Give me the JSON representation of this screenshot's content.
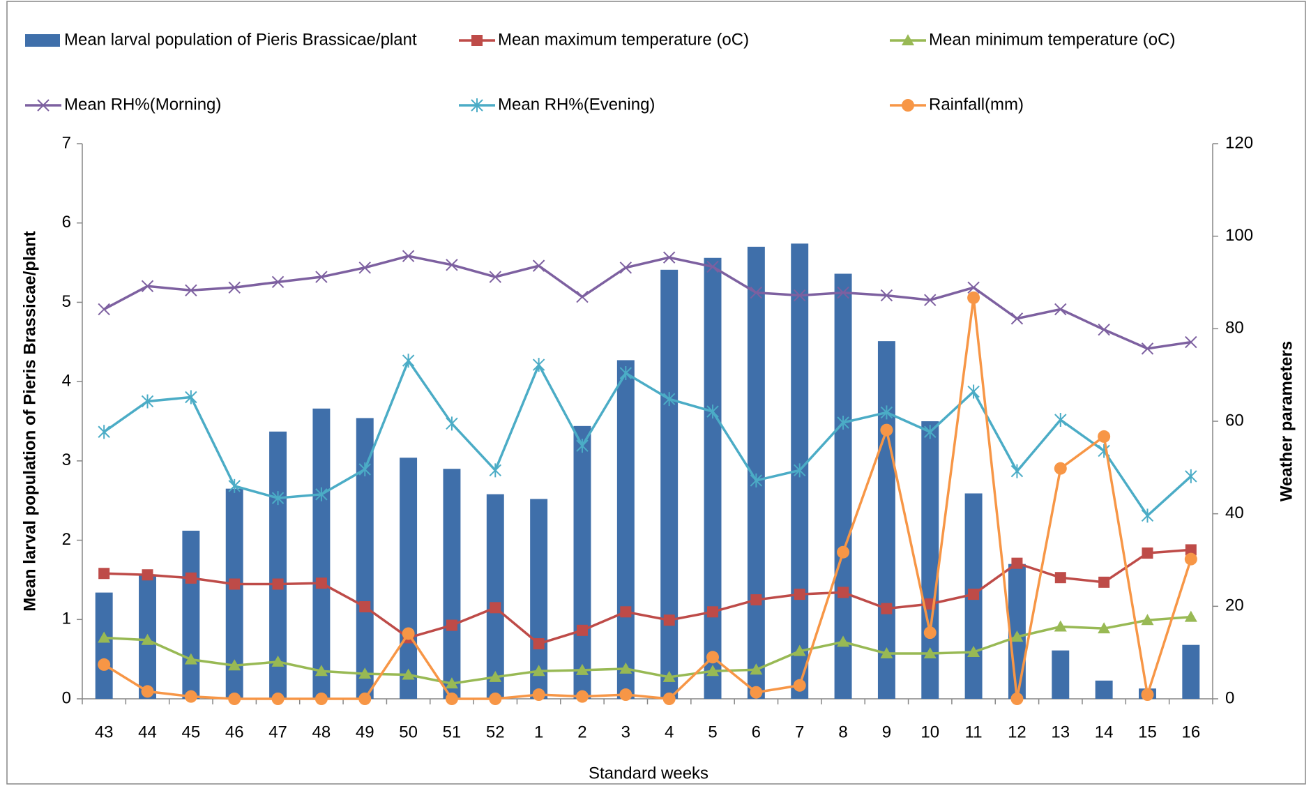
{
  "chart_data": {
    "type": "combo",
    "x_label": "Standard weeks",
    "y_label": "Mean larval population of Pieris Brassicae/plant",
    "y2_label": "Weather parameters",
    "categories": [
      "43",
      "44",
      "45",
      "46",
      "47",
      "48",
      "49",
      "50",
      "51",
      "52",
      "1",
      "2",
      "3",
      "4",
      "5",
      "6",
      "7",
      "8",
      "9",
      "10",
      "11",
      "12",
      "13",
      "14",
      "15",
      "16"
    ],
    "ylim": [
      0,
      7
    ],
    "yticks": [
      0,
      1,
      2,
      3,
      4,
      5,
      6,
      7
    ],
    "y2lim": [
      0,
      120
    ],
    "y2ticks": [
      0,
      20,
      40,
      60,
      80,
      100,
      120
    ],
    "grid": false,
    "series": [
      {
        "name": "Mean larval population of Pieris Brassicae/plant",
        "type": "bar",
        "color": "#3f6faa",
        "values": [
          1.34,
          1.56,
          2.12,
          2.65,
          3.37,
          3.66,
          3.54,
          3.04,
          2.9,
          2.58,
          2.52,
          3.44,
          4.27,
          5.41,
          5.56,
          5.7,
          5.74,
          5.36,
          4.51,
          3.5,
          2.59,
          1.7,
          0.61,
          0.23,
          0.13,
          0.68
        ]
      },
      {
        "name": "Mean maximum temperature (oC)",
        "type": "line",
        "axis": "y2",
        "marker": "square",
        "color": "#be4b48",
        "values": [
          27.1,
          26.8,
          26.1,
          24.8,
          24.8,
          25,
          19.9,
          13.2,
          15.9,
          19.7,
          11.9,
          14.8,
          18.8,
          17,
          18.8,
          21.4,
          22.6,
          23,
          19.5,
          20.5,
          22.6,
          29.3,
          26.2,
          25.2,
          31.5,
          32.2
        ]
      },
      {
        "name": "Mean minimum temperature (oC)",
        "type": "line",
        "axis": "y2",
        "marker": "triangle",
        "color": "#98b954",
        "values": [
          13.2,
          12.7,
          8.5,
          7.2,
          8,
          6,
          5.4,
          5.2,
          3.3,
          4.7,
          6,
          6.2,
          6.5,
          4.7,
          6,
          6.3,
          10.3,
          12.3,
          9.8,
          9.8,
          10.1,
          13.4,
          15.6,
          15.2,
          17,
          17.7
        ]
      },
      {
        "name": "Mean RH%(Morning)",
        "type": "line",
        "axis": "y2",
        "marker": "x",
        "color": "#7d60a0",
        "values": [
          84.2,
          89.2,
          88.3,
          88.9,
          90.1,
          91.2,
          93.2,
          95.7,
          93.8,
          91.2,
          93.6,
          86.9,
          93.2,
          95.4,
          93.4,
          87.8,
          87.2,
          87.8,
          87.2,
          86.2,
          88.9,
          82.2,
          84.2,
          79.8,
          75.7,
          77.1
        ]
      },
      {
        "name": "Mean RH%(Evening)",
        "type": "line",
        "axis": "y2",
        "marker": "star",
        "color": "#4bacc6",
        "values": [
          57.7,
          64.3,
          65.2,
          46,
          43.4,
          44.2,
          49.6,
          73.1,
          59.5,
          49.4,
          72.2,
          54.7,
          70.4,
          64.8,
          62.1,
          47.2,
          49.4,
          59.7,
          61.9,
          57.7,
          66.4,
          49.2,
          60.3,
          53.6,
          39.6,
          48.1
        ]
      },
      {
        "name": "Rainfall(mm)",
        "type": "line",
        "axis": "y2",
        "marker": "circle",
        "color": "#f79646",
        "values": [
          7.4,
          1.6,
          0.5,
          0,
          0,
          0,
          0,
          14.1,
          0,
          0,
          0.9,
          0.5,
          0.9,
          0,
          9,
          1.4,
          2.9,
          31.7,
          58.1,
          14.3,
          86.7,
          0,
          49.8,
          56.7,
          0.9,
          30.2
        ]
      }
    ]
  }
}
